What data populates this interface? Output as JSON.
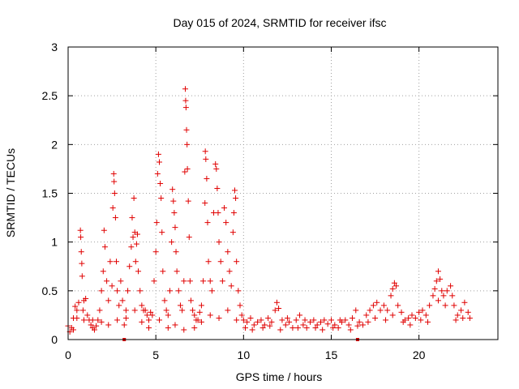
{
  "chart_data": {
    "type": "scatter",
    "title": "Day 015 of 2024, SRMTID for receiver ifsc",
    "xlabel": "GPS time / hours",
    "ylabel": "SRMTID / TECUs",
    "xlim": [
      0,
      24.5
    ],
    "ylim": [
      0,
      3
    ],
    "xticks": [
      0,
      5,
      10,
      15,
      20
    ],
    "xtick_labels": [
      "0",
      "5",
      "10",
      "15",
      "20"
    ],
    "yticks": [
      0,
      0.5,
      1,
      1.5,
      2,
      2.5,
      3
    ],
    "ytick_labels": [
      "0",
      "0.5",
      "1",
      "1.5",
      "2",
      "2.5",
      "3"
    ],
    "grid": true,
    "marker": "+",
    "color": "#e00000",
    "baseline_markers_x": [
      3.2,
      16.5
    ],
    "series": [
      {
        "name": "SRMTID",
        "points": [
          [
            0.0,
            0.14
          ],
          [
            0.1,
            0.08
          ],
          [
            0.2,
            0.12
          ],
          [
            0.3,
            0.22
          ],
          [
            0.4,
            0.34
          ],
          [
            0.5,
            0.3
          ],
          [
            0.6,
            0.38
          ],
          [
            0.7,
            1.12
          ],
          [
            0.72,
            1.05
          ],
          [
            0.75,
            0.9
          ],
          [
            0.78,
            0.78
          ],
          [
            0.8,
            0.65
          ],
          [
            0.85,
            0.3
          ],
          [
            0.9,
            0.4
          ],
          [
            1.0,
            0.42
          ],
          [
            1.1,
            0.25
          ],
          [
            1.2,
            0.2
          ],
          [
            1.3,
            0.15
          ],
          [
            1.4,
            0.12
          ],
          [
            1.5,
            0.1
          ],
          [
            1.6,
            0.14
          ],
          [
            1.7,
            0.2
          ],
          [
            1.8,
            0.3
          ],
          [
            1.9,
            0.5
          ],
          [
            2.0,
            0.7
          ],
          [
            2.05,
            1.12
          ],
          [
            2.1,
            0.95
          ],
          [
            2.2,
            0.6
          ],
          [
            2.3,
            0.4
          ],
          [
            2.4,
            0.8
          ],
          [
            2.5,
            0.55
          ],
          [
            2.55,
            1.35
          ],
          [
            2.6,
            1.7
          ],
          [
            2.62,
            1.62
          ],
          [
            2.65,
            1.5
          ],
          [
            2.7,
            1.25
          ],
          [
            2.75,
            0.8
          ],
          [
            2.8,
            0.5
          ],
          [
            2.9,
            0.35
          ],
          [
            3.0,
            0.6
          ],
          [
            3.1,
            0.4
          ],
          [
            3.2,
            0.15
          ],
          [
            3.3,
            0.3
          ],
          [
            3.4,
            0.5
          ],
          [
            3.5,
            0.75
          ],
          [
            3.6,
            0.95
          ],
          [
            3.65,
            1.25
          ],
          [
            3.7,
            1.05
          ],
          [
            3.75,
            1.45
          ],
          [
            3.8,
            1.1
          ],
          [
            3.85,
            0.8
          ],
          [
            3.9,
            0.98
          ],
          [
            3.95,
            1.08
          ],
          [
            4.0,
            0.7
          ],
          [
            4.1,
            0.5
          ],
          [
            4.2,
            0.35
          ],
          [
            4.3,
            0.3
          ],
          [
            4.4,
            0.3
          ],
          [
            4.5,
            0.25
          ],
          [
            4.6,
            0.2
          ],
          [
            4.7,
            0.28
          ],
          [
            4.8,
            0.25
          ],
          [
            4.9,
            0.6
          ],
          [
            5.0,
            0.9
          ],
          [
            5.05,
            1.2
          ],
          [
            5.1,
            1.7
          ],
          [
            5.15,
            1.9
          ],
          [
            5.2,
            1.82
          ],
          [
            5.25,
            1.6
          ],
          [
            5.3,
            1.45
          ],
          [
            5.35,
            1.1
          ],
          [
            5.4,
            0.7
          ],
          [
            5.5,
            0.4
          ],
          [
            5.6,
            0.3
          ],
          [
            5.7,
            0.25
          ],
          [
            5.8,
            0.5
          ],
          [
            5.9,
            1.0
          ],
          [
            5.95,
            1.54
          ],
          [
            6.0,
            1.42
          ],
          [
            6.05,
            1.3
          ],
          [
            6.1,
            1.15
          ],
          [
            6.15,
            0.9
          ],
          [
            6.2,
            0.7
          ],
          [
            6.3,
            0.5
          ],
          [
            6.4,
            0.35
          ],
          [
            6.5,
            0.3
          ],
          [
            6.6,
            0.6
          ],
          [
            6.65,
            1.72
          ],
          [
            6.68,
            2.57
          ],
          [
            6.7,
            2.45
          ],
          [
            6.72,
            2.38
          ],
          [
            6.75,
            2.15
          ],
          [
            6.78,
            2.0
          ],
          [
            6.8,
            1.75
          ],
          [
            6.85,
            1.42
          ],
          [
            6.9,
            1.05
          ],
          [
            6.95,
            0.6
          ],
          [
            7.0,
            0.4
          ],
          [
            7.1,
            0.3
          ],
          [
            7.2,
            0.25
          ],
          [
            7.3,
            0.2
          ],
          [
            7.4,
            0.2
          ],
          [
            7.5,
            0.28
          ],
          [
            7.6,
            0.35
          ],
          [
            7.7,
            0.6
          ],
          [
            7.8,
            1.4
          ],
          [
            7.82,
            1.93
          ],
          [
            7.85,
            1.85
          ],
          [
            7.9,
            1.65
          ],
          [
            7.95,
            1.2
          ],
          [
            8.0,
            0.8
          ],
          [
            8.1,
            0.6
          ],
          [
            8.2,
            0.5
          ],
          [
            8.3,
            1.3
          ],
          [
            8.4,
            1.8
          ],
          [
            8.45,
            1.75
          ],
          [
            8.5,
            1.55
          ],
          [
            8.55,
            1.3
          ],
          [
            8.6,
            1.0
          ],
          [
            8.7,
            0.8
          ],
          [
            8.8,
            0.6
          ],
          [
            8.9,
            1.35
          ],
          [
            9.0,
            1.2
          ],
          [
            9.1,
            0.9
          ],
          [
            9.2,
            0.7
          ],
          [
            9.3,
            0.55
          ],
          [
            9.4,
            1.1
          ],
          [
            9.45,
            1.3
          ],
          [
            9.5,
            1.53
          ],
          [
            9.55,
            1.45
          ],
          [
            9.6,
            0.8
          ],
          [
            9.7,
            0.5
          ],
          [
            9.8,
            0.35
          ],
          [
            9.9,
            0.25
          ],
          [
            10.0,
            0.2
          ],
          [
            10.2,
            0.18
          ],
          [
            10.4,
            0.22
          ],
          [
            10.6,
            0.15
          ],
          [
            10.8,
            0.18
          ],
          [
            11.0,
            0.2
          ],
          [
            11.2,
            0.15
          ],
          [
            11.4,
            0.22
          ],
          [
            11.6,
            0.18
          ],
          [
            11.8,
            0.3
          ],
          [
            11.9,
            0.38
          ],
          [
            12.0,
            0.32
          ],
          [
            12.2,
            0.2
          ],
          [
            12.4,
            0.15
          ],
          [
            12.6,
            0.18
          ],
          [
            12.8,
            0.12
          ],
          [
            13.0,
            0.2
          ],
          [
            13.2,
            0.25
          ],
          [
            13.4,
            0.15
          ],
          [
            13.6,
            0.12
          ],
          [
            13.8,
            0.18
          ],
          [
            14.0,
            0.2
          ],
          [
            14.2,
            0.15
          ],
          [
            14.4,
            0.18
          ],
          [
            14.6,
            0.2
          ],
          [
            14.8,
            0.16
          ],
          [
            15.0,
            0.2
          ],
          [
            15.2,
            0.15
          ],
          [
            15.4,
            0.12
          ],
          [
            15.6,
            0.18
          ],
          [
            15.8,
            0.2
          ],
          [
            16.0,
            0.15
          ],
          [
            16.2,
            0.22
          ],
          [
            16.4,
            0.3
          ],
          [
            16.6,
            0.18
          ],
          [
            16.8,
            0.15
          ],
          [
            17.0,
            0.25
          ],
          [
            17.2,
            0.3
          ],
          [
            17.4,
            0.35
          ],
          [
            17.6,
            0.38
          ],
          [
            17.8,
            0.3
          ],
          [
            18.0,
            0.35
          ],
          [
            18.2,
            0.3
          ],
          [
            18.4,
            0.45
          ],
          [
            18.5,
            0.52
          ],
          [
            18.6,
            0.58
          ],
          [
            18.7,
            0.55
          ],
          [
            18.8,
            0.35
          ],
          [
            19.0,
            0.28
          ],
          [
            19.2,
            0.2
          ],
          [
            19.4,
            0.22
          ],
          [
            19.6,
            0.25
          ],
          [
            19.8,
            0.22
          ],
          [
            20.0,
            0.28
          ],
          [
            20.2,
            0.3
          ],
          [
            20.4,
            0.25
          ],
          [
            20.6,
            0.35
          ],
          [
            20.8,
            0.45
          ],
          [
            20.9,
            0.52
          ],
          [
            21.0,
            0.6
          ],
          [
            21.1,
            0.7
          ],
          [
            21.2,
            0.62
          ],
          [
            21.3,
            0.5
          ],
          [
            21.4,
            0.45
          ],
          [
            21.6,
            0.5
          ],
          [
            21.8,
            0.55
          ],
          [
            21.9,
            0.45
          ],
          [
            22.0,
            0.35
          ],
          [
            22.2,
            0.25
          ],
          [
            22.4,
            0.3
          ],
          [
            22.6,
            0.38
          ],
          [
            22.8,
            0.28
          ],
          [
            22.9,
            0.22
          ],
          [
            0.3,
            0.1
          ],
          [
            0.5,
            0.22
          ],
          [
            0.9,
            0.2
          ],
          [
            1.4,
            0.2
          ],
          [
            1.9,
            0.18
          ],
          [
            2.3,
            0.15
          ],
          [
            2.8,
            0.2
          ],
          [
            3.3,
            0.22
          ],
          [
            3.8,
            0.3
          ],
          [
            4.2,
            0.18
          ],
          [
            4.6,
            0.12
          ],
          [
            5.2,
            0.2
          ],
          [
            5.7,
            0.12
          ],
          [
            6.1,
            0.15
          ],
          [
            6.6,
            0.1
          ],
          [
            7.2,
            0.12
          ],
          [
            7.6,
            0.18
          ],
          [
            8.1,
            0.25
          ],
          [
            8.6,
            0.22
          ],
          [
            9.1,
            0.3
          ],
          [
            9.6,
            0.2
          ],
          [
            10.1,
            0.12
          ],
          [
            10.5,
            0.1
          ],
          [
            11.1,
            0.12
          ],
          [
            11.5,
            0.14
          ],
          [
            12.1,
            0.1
          ],
          [
            12.5,
            0.22
          ],
          [
            13.1,
            0.12
          ],
          [
            13.5,
            0.2
          ],
          [
            14.1,
            0.12
          ],
          [
            14.5,
            0.1
          ],
          [
            15.1,
            0.12
          ],
          [
            15.5,
            0.2
          ],
          [
            16.1,
            0.1
          ],
          [
            16.5,
            0.14
          ],
          [
            17.1,
            0.18
          ],
          [
            17.5,
            0.22
          ],
          [
            18.1,
            0.2
          ],
          [
            18.5,
            0.25
          ],
          [
            19.1,
            0.18
          ],
          [
            19.5,
            0.15
          ],
          [
            20.1,
            0.2
          ],
          [
            20.5,
            0.18
          ],
          [
            21.1,
            0.4
          ],
          [
            21.5,
            0.35
          ],
          [
            22.1,
            0.2
          ],
          [
            22.5,
            0.22
          ]
        ]
      }
    ]
  }
}
